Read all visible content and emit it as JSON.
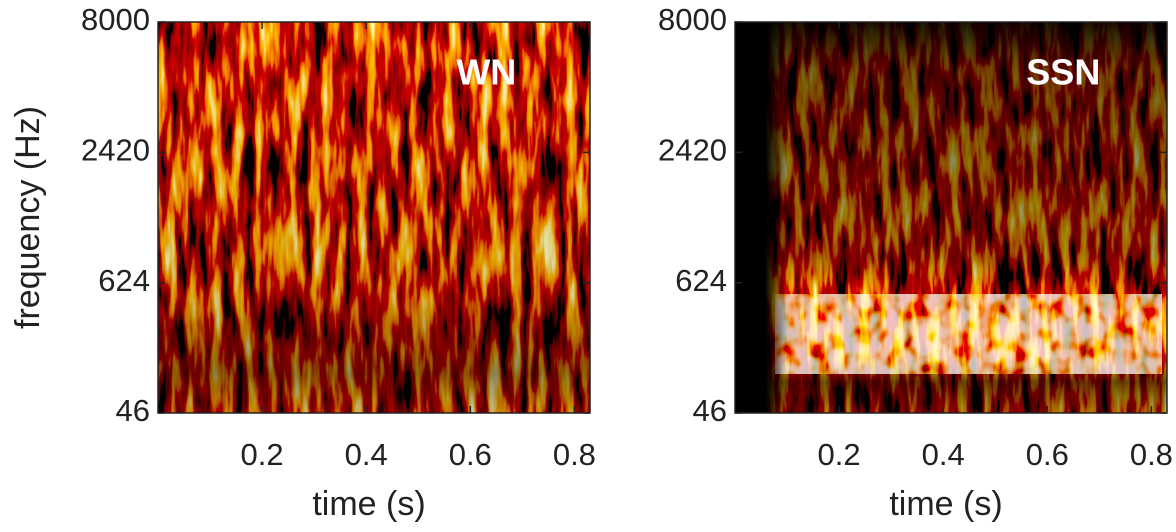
{
  "chart_data": [
    {
      "type": "spectrogram",
      "annotation": "WN",
      "xlabel": "time (s)",
      "ylabel": "frequency (Hz)",
      "xlim": [
        0,
        0.83
      ],
      "xticks": [
        0.2,
        0.4,
        0.6,
        0.8
      ],
      "ylim": [
        46,
        8000
      ],
      "yticks": [
        46,
        624,
        2420,
        8000
      ],
      "yscale": "erb"
    },
    {
      "type": "spectrogram",
      "annotation": "SSN",
      "xlabel": "time (s)",
      "xlim": [
        0,
        0.83
      ],
      "xticks": [
        0.2,
        0.4,
        0.6,
        0.8
      ],
      "ylim": [
        46,
        8000
      ],
      "yticks": [
        46,
        624,
        2420,
        8000
      ],
      "yscale": "erb"
    }
  ]
}
